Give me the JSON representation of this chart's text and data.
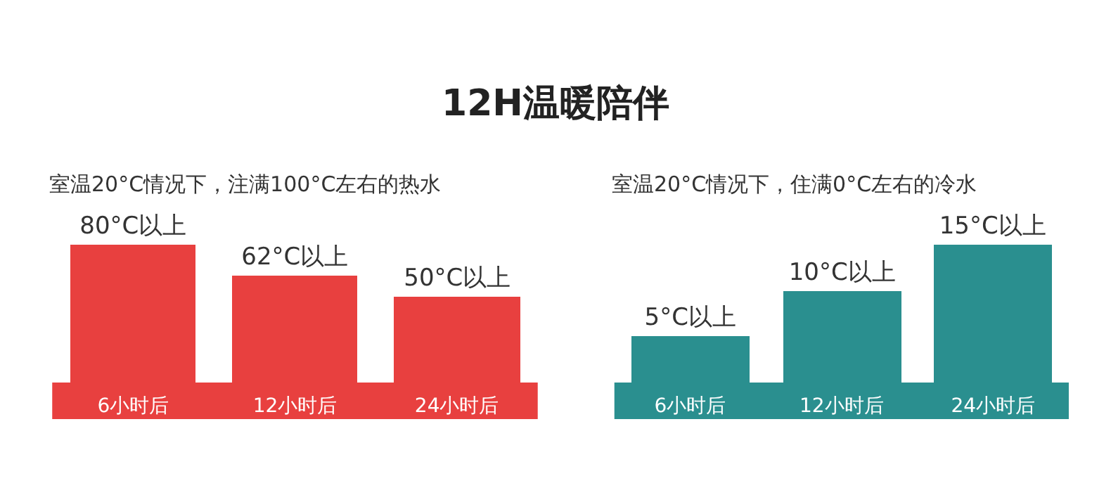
{
  "chart_data": [
    {
      "type": "bar",
      "title": "12H温暖陪伴",
      "subtitle": "室温20°C情况下，注满100°C左右的热水",
      "categories": [
        "6小时后",
        "12小时后",
        "24小时后"
      ],
      "values": [
        80,
        62,
        50
      ],
      "value_labels": [
        "80°C以上",
        "62°C以上",
        "50°C以上"
      ],
      "color": "#e8403f"
    },
    {
      "type": "bar",
      "subtitle": "室温20°C情况下，住满0°C左右的冷水",
      "categories": [
        "6小时后",
        "12小时后",
        "24小时后"
      ],
      "values": [
        5,
        10,
        15
      ],
      "value_labels": [
        "5°C以上",
        "10°C以上",
        "15°C以上"
      ],
      "color": "#2a8f8f"
    }
  ]
}
